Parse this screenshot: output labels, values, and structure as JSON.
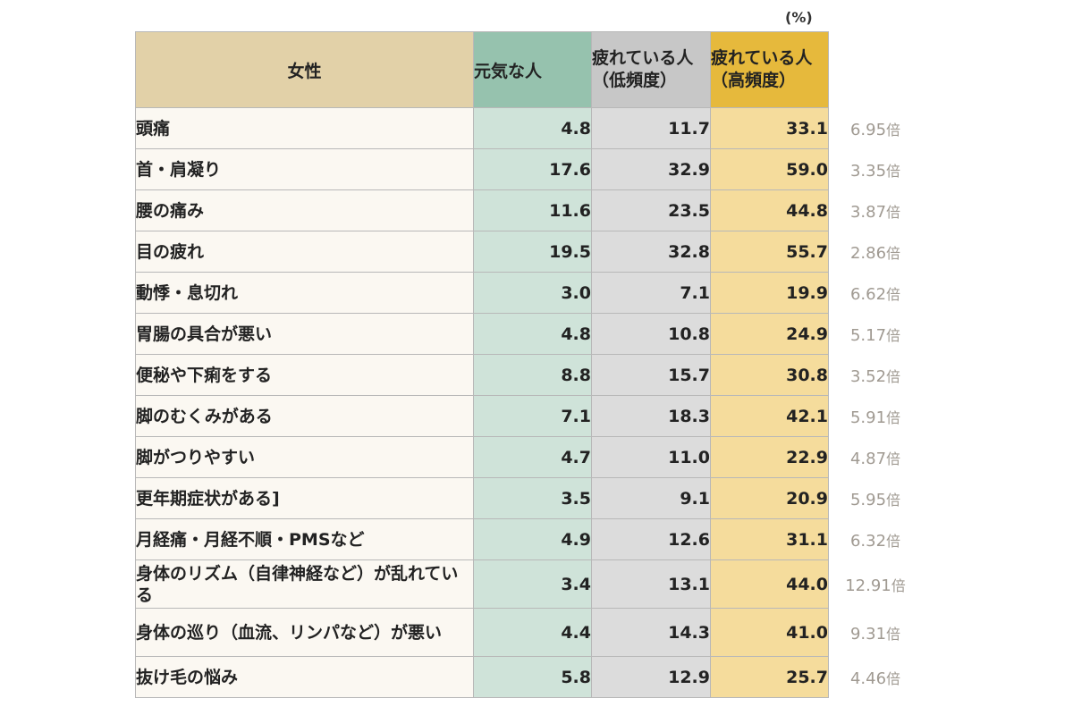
{
  "chart_data": {
    "type": "table",
    "unit": "(%)",
    "columns": [
      "女性",
      "元気な人",
      "疲れている人（低頻度）",
      "疲れている人（高頻度）"
    ],
    "ratio_suffix": "倍",
    "rows": [
      {
        "label": "頭痛",
        "values": [
          "4.8",
          "11.7",
          "33.1"
        ],
        "ratio": "6.95"
      },
      {
        "label": "首・肩凝り",
        "values": [
          "17.6",
          "32.9",
          "59.0"
        ],
        "ratio": "3.35"
      },
      {
        "label": "腰の痛み",
        "values": [
          "11.6",
          "23.5",
          "44.8"
        ],
        "ratio": "3.87"
      },
      {
        "label": "目の疲れ",
        "values": [
          "19.5",
          "32.8",
          "55.7"
        ],
        "ratio": "2.86"
      },
      {
        "label": "動悸・息切れ",
        "values": [
          "3.0",
          "7.1",
          "19.9"
        ],
        "ratio": "6.62"
      },
      {
        "label": "胃腸の具合が悪い",
        "values": [
          "4.8",
          "10.8",
          "24.9"
        ],
        "ratio": "5.17"
      },
      {
        "label": "便秘や下痢をする",
        "values": [
          "8.8",
          "15.7",
          "30.8"
        ],
        "ratio": "3.52"
      },
      {
        "label": "脚のむくみがある",
        "values": [
          "7.1",
          "18.3",
          "42.1"
        ],
        "ratio": "5.91"
      },
      {
        "label": "脚がつりやすい",
        "values": [
          "4.7",
          "11.0",
          "22.9"
        ],
        "ratio": "4.87"
      },
      {
        "label": "更年期症状がある]",
        "values": [
          "3.5",
          "9.1",
          "20.9"
        ],
        "ratio": "5.95"
      },
      {
        "label": "月経痛・月経不順・PMSなど",
        "values": [
          "4.9",
          "12.6",
          "31.1"
        ],
        "ratio": "6.32"
      },
      {
        "label": "身体のリズム（自律神経など）が乱れている",
        "values": [
          "3.4",
          "13.1",
          "44.0"
        ],
        "ratio": "12.91"
      },
      {
        "label": "身体の巡り（血流、リンパなど）が悪い",
        "values": [
          "4.4",
          "14.3",
          "41.0"
        ],
        "ratio": "9.31"
      },
      {
        "label": "抜け毛の悩み",
        "values": [
          "5.8",
          "12.9",
          "25.7"
        ],
        "ratio": "4.46"
      }
    ]
  }
}
